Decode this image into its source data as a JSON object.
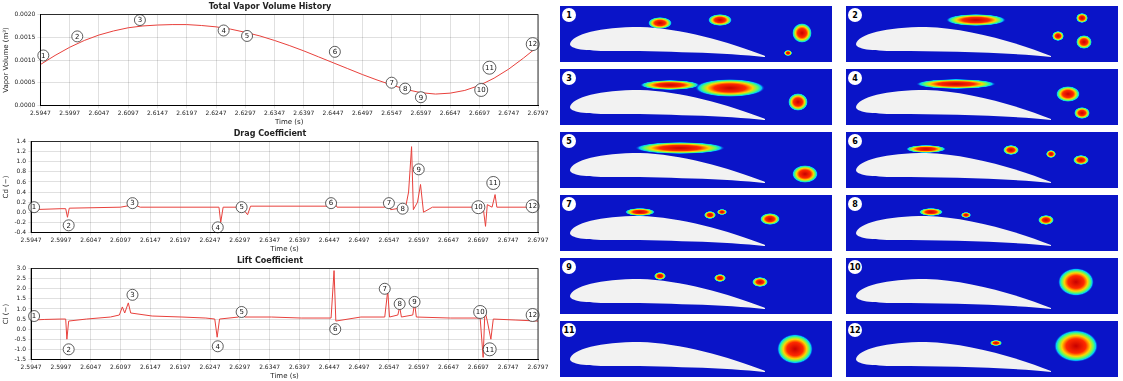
{
  "chart_data": [
    {
      "type": "line",
      "title": "Total Vapor Volume History",
      "x_label": "Time (s)",
      "y_label": "Vapor Volume (m³)",
      "color": "#e8413c",
      "grid": true,
      "x": [
        2.5947,
        2.5972,
        2.5997,
        2.6022,
        2.6047,
        2.6072,
        2.6097,
        2.6122,
        2.6147,
        2.6172,
        2.6197,
        2.6222,
        2.6247,
        2.6272,
        2.6297,
        2.6322,
        2.6347,
        2.6372,
        2.6397,
        2.6422,
        2.6447,
        2.6472,
        2.6497,
        2.6522,
        2.6547,
        2.6572,
        2.6597,
        2.6622,
        2.6647,
        2.6672,
        2.6697,
        2.6722,
        2.6747,
        2.6772,
        2.6797
      ],
      "values": [
        0.0009,
        0.0011,
        0.00128,
        0.00143,
        0.00155,
        0.00164,
        0.00171,
        0.00175,
        0.00177,
        0.00178,
        0.00178,
        0.00176,
        0.00173,
        0.00168,
        0.00161,
        0.00153,
        0.00143,
        0.00132,
        0.0012,
        0.00107,
        0.00094,
        0.00081,
        0.00068,
        0.00056,
        0.00045,
        0.00035,
        0.00028,
        0.00025,
        0.00027,
        0.00033,
        0.00044,
        0.0006,
        0.0008,
        0.00104,
        0.0013
      ],
      "xlim": [
        2.5947,
        2.6797
      ],
      "xticks": [
        2.5947,
        2.5997,
        2.6047,
        2.6097,
        2.6147,
        2.6197,
        2.6247,
        2.6297,
        2.6347,
        2.6397,
        2.6447,
        2.6497,
        2.6547,
        2.6597,
        2.6647,
        2.6697,
        2.6747,
        2.6797
      ],
      "ylim": [
        0,
        0.002
      ],
      "yticks": [
        {
          "value": 0,
          "label": "0.0000"
        },
        {
          "value": 0.0005,
          "label": "0.0005"
        },
        {
          "value": 0.001,
          "label": "0.0010"
        },
        {
          "value": 0.0015,
          "label": "0.0015"
        },
        {
          "value": 0.002,
          "label": "0.0020"
        }
      ],
      "annotations": [
        {
          "text": "1",
          "x": 2.5952,
          "y": 0.0011
        },
        {
          "text": "2",
          "x": 2.601,
          "y": 0.00152
        },
        {
          "text": "3",
          "x": 2.6117,
          "y": 0.00188
        },
        {
          "text": "4",
          "x": 2.626,
          "y": 0.00165
        },
        {
          "text": "5",
          "x": 2.63,
          "y": 0.00153
        },
        {
          "text": "6",
          "x": 2.645,
          "y": 0.00118
        },
        {
          "text": "7",
          "x": 2.6547,
          "y": 0.0005
        },
        {
          "text": "8",
          "x": 2.657,
          "y": 0.00037
        },
        {
          "text": "9",
          "x": 2.6597,
          "y": 0.00018
        },
        {
          "text": "10",
          "x": 2.67,
          "y": 0.00034
        },
        {
          "text": "11",
          "x": 2.6714,
          "y": 0.00083
        },
        {
          "text": "12",
          "x": 2.6788,
          "y": 0.00135
        }
      ]
    },
    {
      "type": "line",
      "title": "Drag Coefficient",
      "x_label": "Time (s)",
      "y_label": "Cd (−)",
      "color": "#e8413c",
      "grid": true,
      "x": [
        2.5947,
        2.5997,
        2.6005,
        2.6008,
        2.6011,
        2.6097,
        2.612,
        2.613,
        2.6247,
        2.6262,
        2.6265,
        2.6269,
        2.63,
        2.631,
        2.6315,
        2.6447,
        2.6455,
        2.646,
        2.654,
        2.6545,
        2.655,
        2.6575,
        2.658,
        2.6585,
        2.6588,
        2.6595,
        2.66,
        2.6605,
        2.662,
        2.6697,
        2.6705,
        2.6709,
        2.6712,
        2.672,
        2.6725,
        2.6728,
        2.6797
      ],
      "values": [
        0.05,
        0.07,
        0.07,
        -0.1,
        0.08,
        0.1,
        0.15,
        0.1,
        0.1,
        0.1,
        -0.2,
        0.1,
        0.1,
        -0.05,
        0.12,
        0.12,
        0.2,
        0.1,
        0.1,
        0.25,
        0.05,
        0.1,
        0.4,
        1.3,
        0.05,
        0.2,
        0.55,
        0.0,
        0.1,
        0.1,
        0.1,
        -0.28,
        0.15,
        0.1,
        0.35,
        0.1,
        0.1
      ],
      "xlim": [
        2.5947,
        2.6797
      ],
      "xticks": [
        2.5947,
        2.5997,
        2.6047,
        2.6097,
        2.6147,
        2.6197,
        2.6247,
        2.6297,
        2.6347,
        2.6397,
        2.6447,
        2.6497,
        2.6547,
        2.6597,
        2.6647,
        2.6697,
        2.6747,
        2.6797
      ],
      "ylim": [
        -0.4,
        1.4
      ],
      "yticks": [
        -0.4,
        -0.2,
        {
          "value": 0,
          "label": "0.0"
        },
        0.2,
        0.4,
        0.6,
        0.8,
        {
          "value": 1,
          "label": "1.0"
        },
        1.2,
        1.4
      ],
      "annotations": [
        {
          "text": "1",
          "x": 2.5952,
          "y": 0.1
        },
        {
          "text": "2",
          "x": 2.601,
          "y": -0.26
        },
        {
          "text": "3",
          "x": 2.6117,
          "y": 0.18
        },
        {
          "text": "4",
          "x": 2.626,
          "y": -0.3
        },
        {
          "text": "5",
          "x": 2.63,
          "y": 0.1
        },
        {
          "text": "6",
          "x": 2.645,
          "y": 0.18
        },
        {
          "text": "7",
          "x": 2.6547,
          "y": 0.18
        },
        {
          "text": "8",
          "x": 2.657,
          "y": 0.07
        },
        {
          "text": "9",
          "x": 2.6597,
          "y": 0.85
        },
        {
          "text": "10",
          "x": 2.6697,
          "y": 0.1
        },
        {
          "text": "11",
          "x": 2.6722,
          "y": 0.58
        },
        {
          "text": "12",
          "x": 2.6788,
          "y": 0.12
        }
      ]
    },
    {
      "type": "line",
      "title": "Lift Coefficient",
      "x_label": "Time (s)",
      "y_label": "Cl (−)",
      "color": "#e8413c",
      "grid": true,
      "x": [
        2.5947,
        2.597,
        2.5997,
        2.6005,
        2.6007,
        2.601,
        2.604,
        2.608,
        2.6095,
        2.61,
        2.6104,
        2.611,
        2.6114,
        2.615,
        2.62,
        2.624,
        2.6255,
        2.6259,
        2.6263,
        2.6295,
        2.63,
        2.6305,
        2.635,
        2.64,
        2.645,
        2.6455,
        2.6458,
        2.65,
        2.654,
        2.6545,
        2.6548,
        2.6562,
        2.6565,
        2.6568,
        2.6587,
        2.659,
        2.6593,
        2.665,
        2.67,
        2.6705,
        2.6708,
        2.6712,
        2.6718,
        2.6722,
        2.676,
        2.6797
      ],
      "values": [
        0.45,
        0.48,
        0.5,
        0.5,
        -0.5,
        0.4,
        0.5,
        0.6,
        0.7,
        1.1,
        0.8,
        1.3,
        0.8,
        0.65,
        0.6,
        0.55,
        0.5,
        -0.4,
        0.5,
        0.6,
        0.9,
        0.6,
        0.6,
        0.55,
        0.55,
        2.9,
        0.4,
        0.6,
        0.6,
        1.9,
        0.6,
        0.7,
        1.1,
        0.6,
        0.7,
        1.3,
        0.6,
        0.55,
        0.55,
        -1.4,
        0.9,
        0.4,
        -0.5,
        0.5,
        0.45,
        0.4
      ],
      "xlim": [
        2.5947,
        2.6797
      ],
      "xticks": [
        2.5947,
        2.5997,
        2.6047,
        2.6097,
        2.6147,
        2.6197,
        2.6247,
        2.6297,
        2.6347,
        2.6397,
        2.6447,
        2.6497,
        2.6547,
        2.6597,
        2.6647,
        2.6697,
        2.6747,
        2.6797
      ],
      "ylim": [
        -1.5,
        3
      ],
      "yticks": [
        -1.5,
        {
          "value": -1,
          "label": "-1.0"
        },
        -0.5,
        {
          "value": 0,
          "label": "0.0"
        },
        0.5,
        {
          "value": 1,
          "label": "1.0"
        },
        1.5,
        {
          "value": 2,
          "label": "2.0"
        },
        2.5,
        {
          "value": 3,
          "label": "3.0"
        }
      ],
      "annotations": [
        {
          "text": "1",
          "x": 2.5952,
          "y": 0.65
        },
        {
          "text": "2",
          "x": 2.601,
          "y": -1.0
        },
        {
          "text": "3",
          "x": 2.6117,
          "y": 1.7
        },
        {
          "text": "4",
          "x": 2.626,
          "y": -0.85
        },
        {
          "text": "5",
          "x": 2.63,
          "y": 0.85
        },
        {
          "text": "6",
          "x": 2.6457,
          "y": 0.0
        },
        {
          "text": "7",
          "x": 2.654,
          "y": 2.0
        },
        {
          "text": "8",
          "x": 2.6565,
          "y": 1.25
        },
        {
          "text": "9",
          "x": 2.659,
          "y": 1.35
        },
        {
          "text": "10",
          "x": 2.67,
          "y": 0.85
        },
        {
          "text": "11",
          "x": 2.6716,
          "y": -1.0
        },
        {
          "text": "12",
          "x": 2.6788,
          "y": 0.7
        }
      ]
    }
  ],
  "snapshots": {
    "labels": [
      "1",
      "2",
      "3",
      "4",
      "5",
      "6",
      "7",
      "8",
      "9",
      "10",
      "11",
      "12"
    ]
  }
}
